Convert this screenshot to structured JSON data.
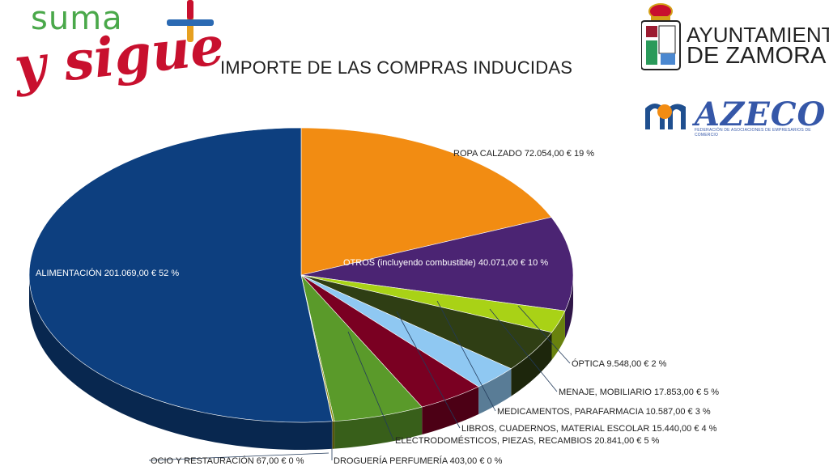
{
  "branding": {
    "suma": "suma",
    "sigue": "y sigue",
    "ayuntamiento_line1": "AYUNTAMIENTO",
    "ayuntamiento_line2": "DE ZAMORA",
    "azeco": "AZECO",
    "azeco_subtitle": "FEDERACIÓN DE ASOCIACIONES DE EMPRESARIOS DE COMERCIO"
  },
  "chart_data": {
    "type": "pie",
    "title": "IMPORTE DE LAS COMPRAS INDUCIDAS",
    "three_d": true,
    "legend": "none",
    "slices": [
      {
        "category": "ROPA CALZADO",
        "value": 72054.0,
        "percent": 19,
        "label": "ROPA CALZADO 72.054,00 € 19 %",
        "color": "#f28c12"
      },
      {
        "category": "OTROS (incluyendo combustible)",
        "value": 40071.0,
        "percent": 10,
        "label": "OTROS (incluyendo combustible) 40.071,00 € 10 %",
        "color": "#4b2473"
      },
      {
        "category": "ÓPTICA",
        "value": 9548.0,
        "percent": 2,
        "label": "ÓPTICA 9.548,00 € 2 %",
        "color": "#a9d216"
      },
      {
        "category": "MENAJE, MOBILIARIO",
        "value": 17853.0,
        "percent": 5,
        "label": "MENAJE, MOBILIARIO 17.853,00 € 5 %",
        "color": "#2f3e14"
      },
      {
        "category": "MEDICAMENTOS, PARAFARMACIA",
        "value": 10587.0,
        "percent": 3,
        "label": "MEDICAMENTOS, PARAFARMACIA 10.587,00 € 3 %",
        "color": "#8fc8f2"
      },
      {
        "category": "LIBROS, CUADERNOS, MATERIAL ESCOLAR",
        "value": 15440.0,
        "percent": 4,
        "label": "LIBROS, CUADERNOS, MATERIAL ESCOLAR 15.440,00 € 4 %",
        "color": "#7a0022"
      },
      {
        "category": "ELECTRODOMÉSTICOS, PIEZAS, RECAMBIOS",
        "value": 20841.0,
        "percent": 5,
        "label": "ELECTRODOMÉSTICOS, PIEZAS, RECAMBIOS 20.841,00 € 5 %",
        "color": "#5a9a2a"
      },
      {
        "category": "DROGUERÍA PERFUMERÍA",
        "value": 403.0,
        "percent": 0,
        "label": "DROGUERÍA PERFUMERÍA 403,00 € 0 %",
        "color": "#8a8a10"
      },
      {
        "category": "OCIO Y RESTAURACIÓN",
        "value": 67.0,
        "percent": 0,
        "label": "OCIO Y RESTAURACIÓN 67,00 € 0 %",
        "color": "#e8c020"
      },
      {
        "category": "ALIMENTACIÓN",
        "value": 201069.0,
        "percent": 52,
        "label": "ALIMENTACIÓN 201.069,00 € 52 %",
        "color": "#0d3f7f"
      }
    ]
  }
}
